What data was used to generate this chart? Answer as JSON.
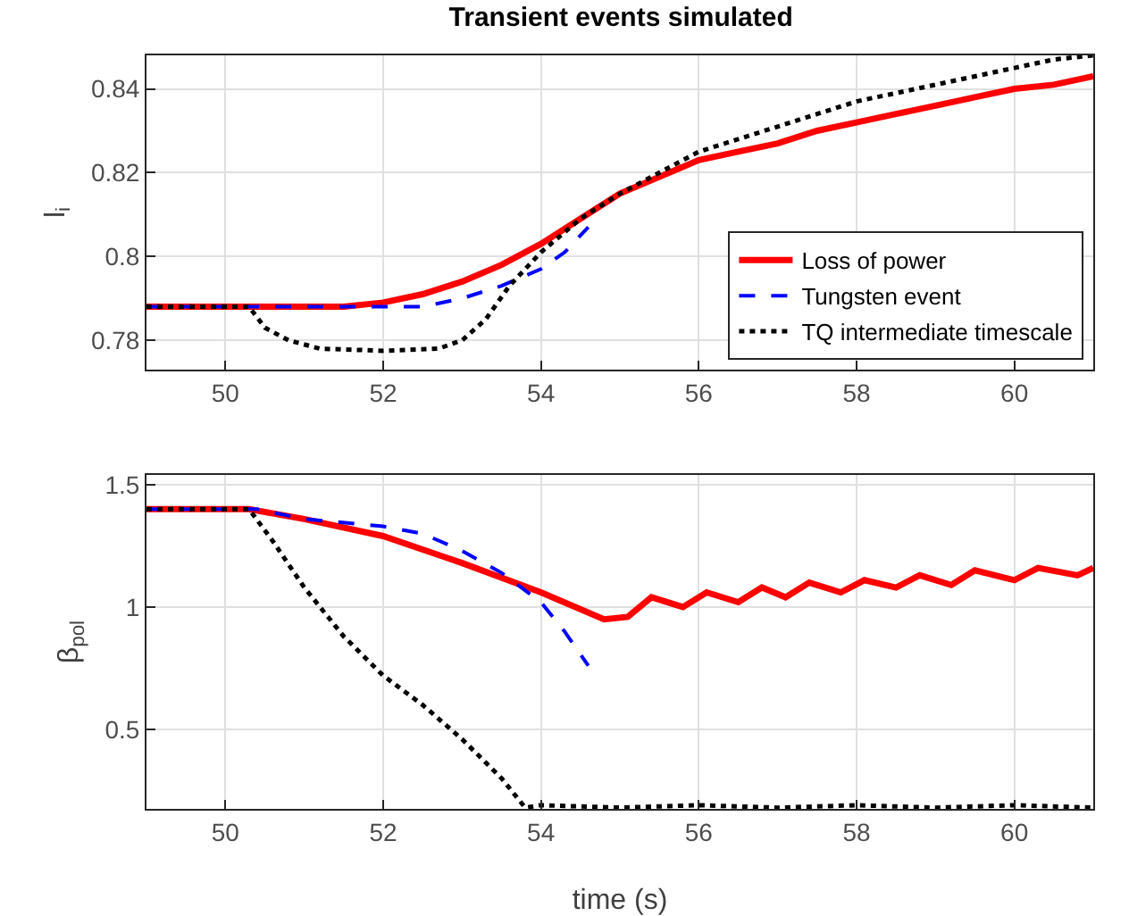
{
  "chart_data": [
    {
      "type": "line",
      "title": "Transient events simulated",
      "ylabel": "l$_{i}$",
      "xlim": [
        49,
        61
      ],
      "xticks": [
        50,
        52,
        54,
        56,
        58,
        60
      ],
      "ylim": [
        0.773,
        0.848
      ],
      "yticks": [
        0.78,
        0.8,
        0.82,
        0.84
      ],
      "grid": true,
      "legend": "bottom right",
      "series": [
        {
          "name": "Loss of power",
          "color": "#ff0000",
          "line_style": "solid",
          "x": [
            49,
            50,
            51,
            51.5,
            52,
            52.5,
            53,
            53.5,
            54,
            54.5,
            55,
            55.5,
            56,
            56.5,
            57,
            57.5,
            58,
            58.5,
            59,
            59.5,
            60,
            60.5,
            61
          ],
          "values": [
            0.788,
            0.788,
            0.788,
            0.788,
            0.789,
            0.791,
            0.794,
            0.798,
            0.803,
            0.809,
            0.815,
            0.819,
            0.823,
            0.825,
            0.827,
            0.83,
            0.832,
            0.834,
            0.836,
            0.838,
            0.84,
            0.841,
            0.843
          ]
        },
        {
          "name": "Tungsten event",
          "color": "#0000ff",
          "line_style": "dashed",
          "x": [
            49,
            50,
            51,
            52,
            52.5,
            53,
            53.5,
            54,
            54.3,
            54.6
          ],
          "values": [
            0.788,
            0.788,
            0.788,
            0.788,
            0.788,
            0.79,
            0.793,
            0.797,
            0.801,
            0.807
          ]
        },
        {
          "name": "TQ intermediate timescale",
          "color": "#000000",
          "line_style": "dotted",
          "x": [
            49,
            50,
            50.3,
            50.5,
            50.8,
            51.2,
            52,
            52.7,
            53,
            53.3,
            53.6,
            54,
            54.5,
            55,
            55.5,
            56,
            56.5,
            57,
            57.5,
            58,
            58.5,
            59,
            59.5,
            60,
            60.5,
            61
          ],
          "values": [
            0.788,
            0.788,
            0.788,
            0.783,
            0.78,
            0.778,
            0.7775,
            0.778,
            0.78,
            0.785,
            0.793,
            0.801,
            0.809,
            0.815,
            0.82,
            0.825,
            0.828,
            0.831,
            0.834,
            0.837,
            0.839,
            0.841,
            0.843,
            0.845,
            0.847,
            0.848
          ]
        }
      ]
    },
    {
      "type": "line",
      "xlabel": "time (s)",
      "ylabel": "β$_{pol}$",
      "xlim": [
        49,
        61
      ],
      "xticks": [
        50,
        52,
        54,
        56,
        58,
        60
      ],
      "ylim": [
        0.175,
        1.54
      ],
      "yticks": [
        0.5,
        1,
        1.5
      ],
      "grid": true,
      "series": [
        {
          "color": "#ff0000",
          "line_style": "solid",
          "x": [
            49,
            50,
            50.3,
            51,
            52,
            53,
            54,
            54.8,
            55.1,
            55.4,
            55.8,
            56.1,
            56.5,
            56.8,
            57.1,
            57.4,
            57.8,
            58.1,
            58.5,
            58.8,
            59.2,
            59.5,
            60,
            60.3,
            60.8,
            61
          ],
          "values": [
            1.4,
            1.4,
            1.4,
            1.36,
            1.29,
            1.18,
            1.06,
            0.95,
            0.96,
            1.04,
            1.0,
            1.06,
            1.02,
            1.08,
            1.04,
            1.1,
            1.06,
            1.11,
            1.08,
            1.13,
            1.09,
            1.15,
            1.11,
            1.16,
            1.13,
            1.16
          ]
        },
        {
          "color": "#0000ff",
          "line_style": "dashed",
          "x": [
            49,
            50,
            50.4,
            51,
            52,
            52.5,
            53,
            53.5,
            54,
            54.3,
            54.6
          ],
          "values": [
            1.4,
            1.4,
            1.4,
            1.36,
            1.33,
            1.3,
            1.23,
            1.14,
            1.02,
            0.9,
            0.76
          ]
        },
        {
          "color": "#000000",
          "line_style": "dotted",
          "x": [
            49,
            50,
            50.3,
            50.6,
            51,
            51.5,
            52,
            52.5,
            53,
            53.5,
            53.8,
            54,
            55,
            56,
            57,
            58,
            59,
            60,
            61
          ],
          "values": [
            1.4,
            1.4,
            1.4,
            1.27,
            1.08,
            0.88,
            0.72,
            0.6,
            0.46,
            0.3,
            0.18,
            0.19,
            0.18,
            0.19,
            0.18,
            0.19,
            0.18,
            0.19,
            0.18
          ]
        }
      ]
    }
  ]
}
